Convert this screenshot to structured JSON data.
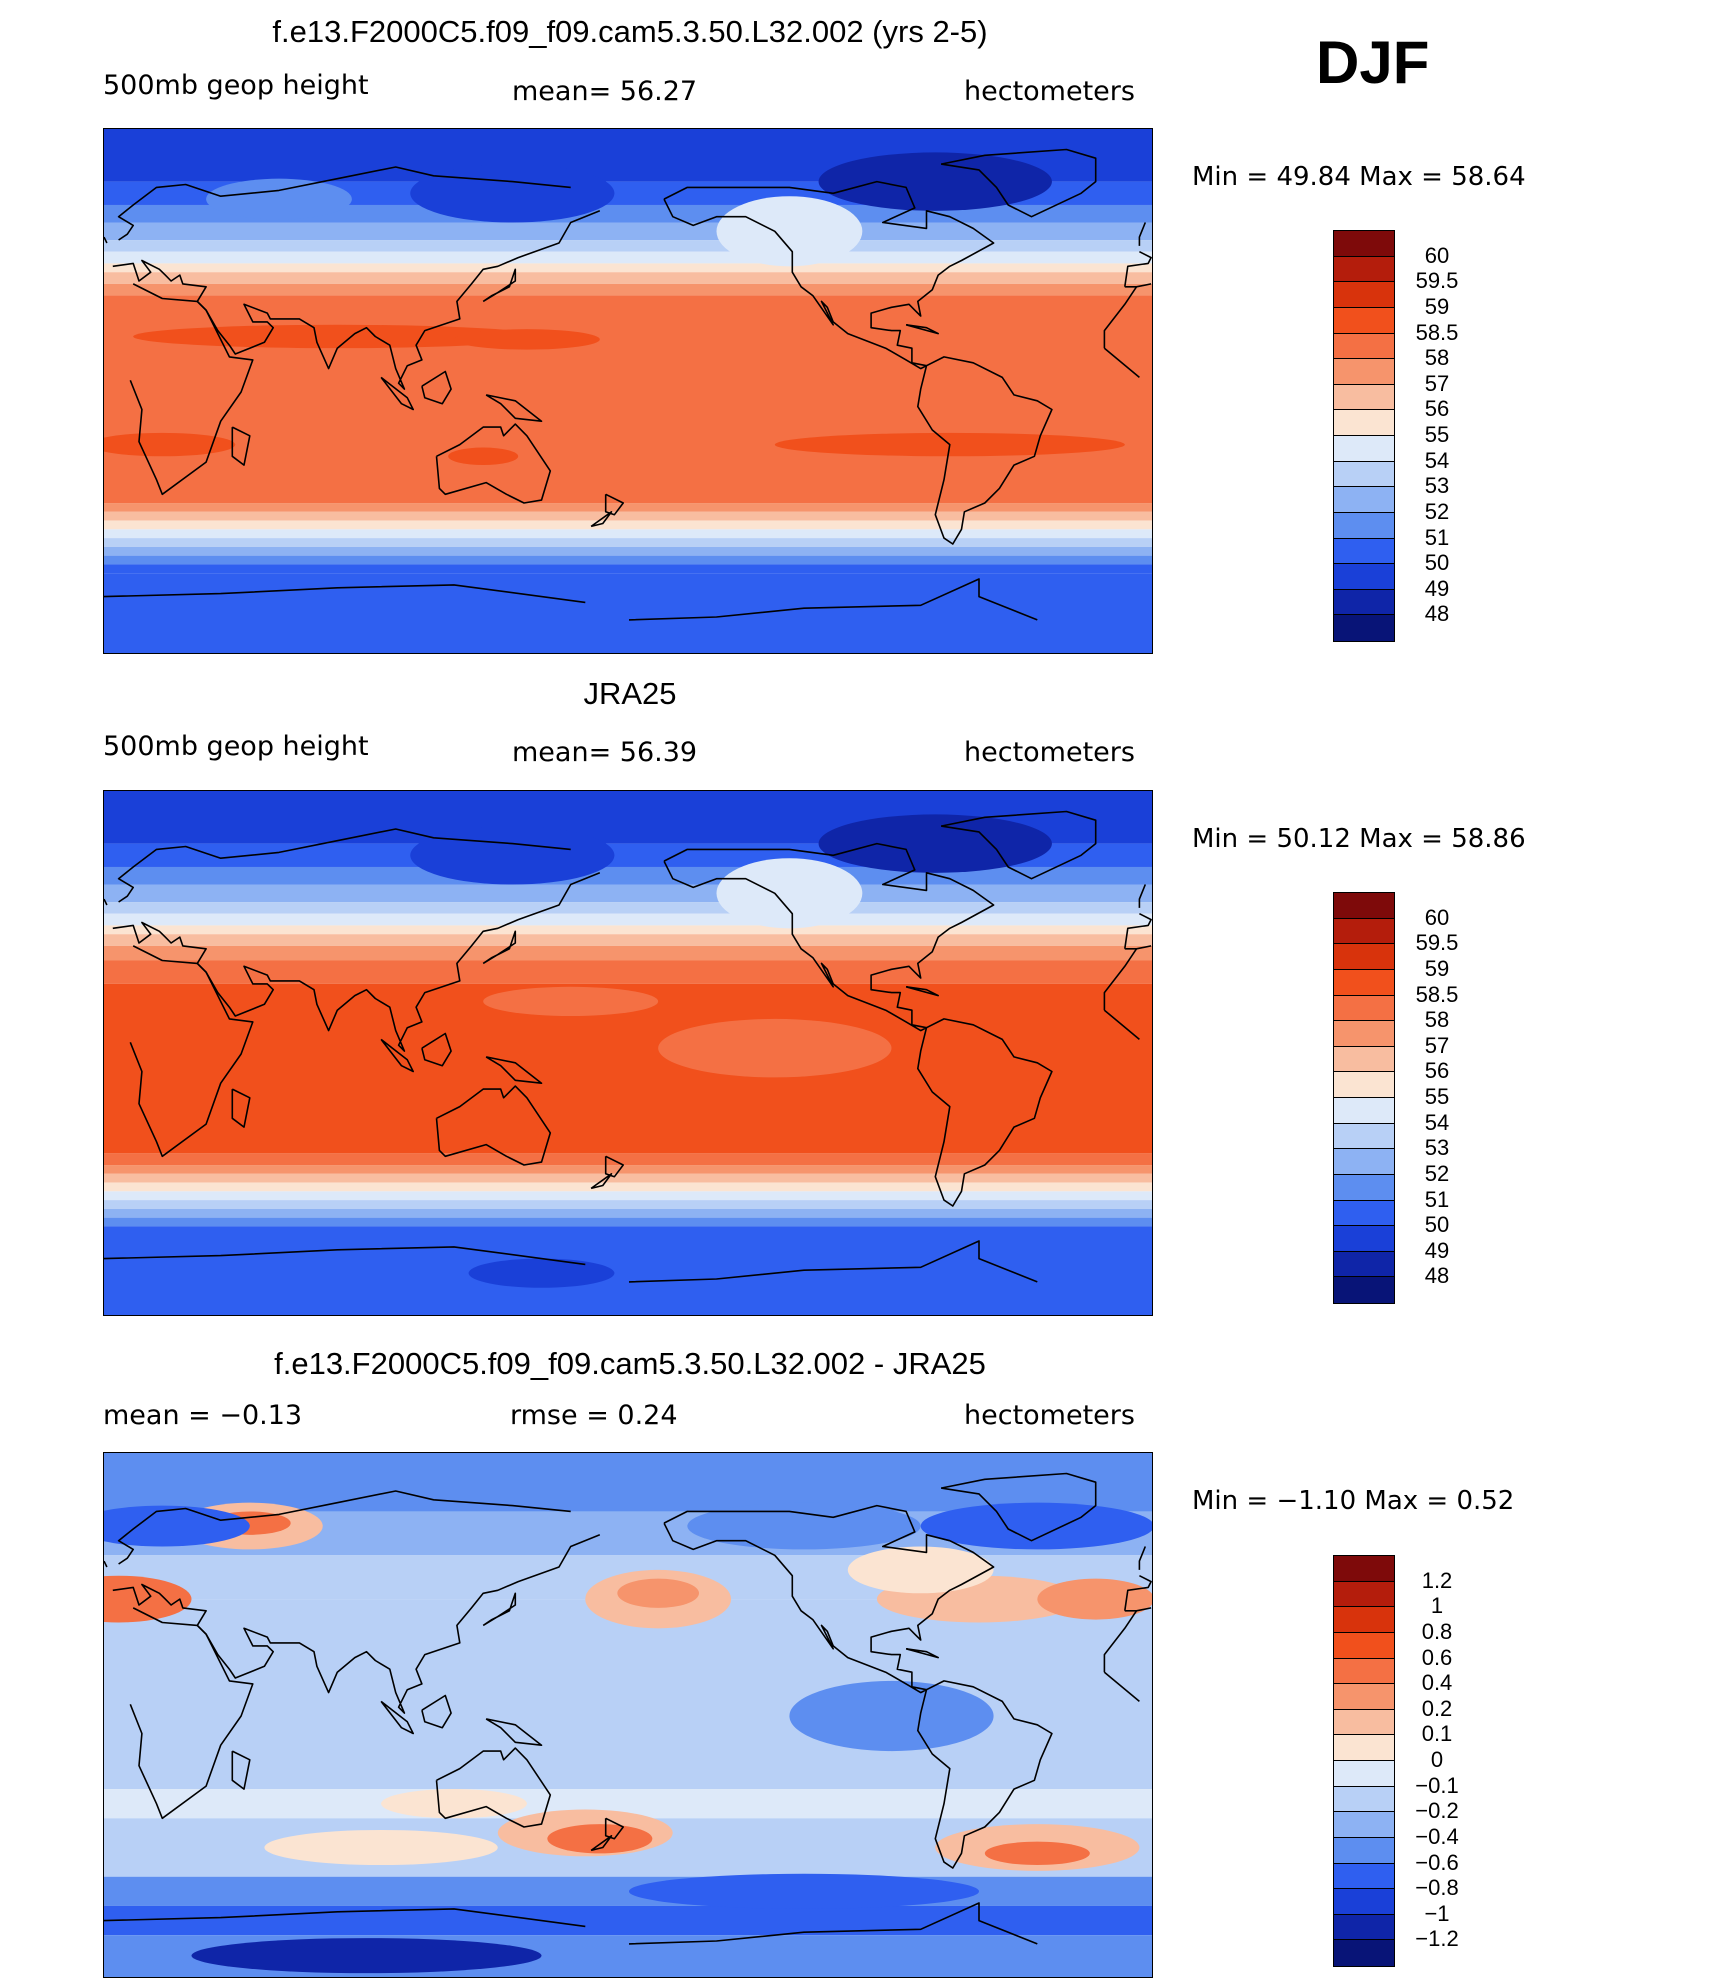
{
  "season": "DJF",
  "panels": [
    {
      "title": "f.e13.F2000C5.f09_f09.cam5.3.50.L32.002 (yrs 2-5)",
      "left_label": "500mb  geop  height",
      "center_label": "mean=   56.27",
      "right_label": "hectometers",
      "minmax": "Min  =    49.84  Max  =    58.64",
      "type": "abs"
    },
    {
      "title": "JRA25",
      "left_label": "500mb  geop  height",
      "center_label": "mean=   56.39",
      "right_label": "hectometers",
      "minmax": "Min  =    50.12  Max  =    58.86",
      "type": "abs"
    },
    {
      "title": "f.e13.F2000C5.f09_f09.cam5.3.50.L32.002 - JRA25",
      "left_label": "mean  =   −0.13",
      "center_label": "rmse  =     0.24",
      "right_label": "hectometers",
      "minmax": "Min  =    −1.10  Max  =      0.52",
      "type": "diff"
    }
  ],
  "colorbar_abs": {
    "levels": [
      "60",
      "59.5",
      "59",
      "58.5",
      "58",
      "57",
      "56",
      "55",
      "54",
      "53",
      "52",
      "51",
      "50",
      "49",
      "48"
    ],
    "colors": [
      "#7e0a0a",
      "#b41d0c",
      "#d8330c",
      "#f1501c",
      "#f47044",
      "#f6946c",
      "#f8bda0",
      "#fbe4d2",
      "#dde9f9",
      "#b8d0f6",
      "#8db2f3",
      "#5d8ef0",
      "#2f5ff0",
      "#1a40d8",
      "#0f25a8",
      "#081477"
    ]
  },
  "colorbar_diff": {
    "levels": [
      "1.2",
      "1",
      "0.8",
      "0.6",
      "0.4",
      "0.2",
      "0.1",
      "0",
      "−0.1",
      "−0.2",
      "−0.4",
      "−0.6",
      "−0.8",
      "−1",
      "−1.2"
    ],
    "colors": [
      "#7e0a0a",
      "#b41d0c",
      "#d8330c",
      "#f1501c",
      "#f47044",
      "#f6946c",
      "#f8bda0",
      "#fbe4d2",
      "#dde9f9",
      "#b8d0f6",
      "#8db2f3",
      "#5d8ef0",
      "#2f5ff0",
      "#1a40d8",
      "#0f25a8",
      "#081477"
    ]
  },
  "chart_data": [
    {
      "type": "heatmap",
      "title": "f.e13.F2000C5.f09_f09.cam5.3.50.L32.002 (yrs 2-5)",
      "variable": "500mb geop height",
      "units": "hectometers",
      "mean": 56.27,
      "min": 49.84,
      "max": 58.64,
      "contour_levels": [
        48,
        49,
        50,
        51,
        52,
        53,
        54,
        55,
        56,
        57,
        58,
        58.5,
        59,
        59.5,
        60
      ]
    },
    {
      "type": "heatmap",
      "title": "JRA25",
      "variable": "500mb geop height",
      "units": "hectometers",
      "mean": 56.39,
      "min": 50.12,
      "max": 58.86,
      "contour_levels": [
        48,
        49,
        50,
        51,
        52,
        53,
        54,
        55,
        56,
        57,
        58,
        58.5,
        59,
        59.5,
        60
      ]
    },
    {
      "type": "heatmap",
      "title": "f.e13.F2000C5.f09_f09.cam5.3.50.L32.002 - JRA25",
      "units": "hectometers",
      "mean": -0.13,
      "rmse": 0.24,
      "min": -1.1,
      "max": 0.52,
      "contour_levels": [
        -1.2,
        -1,
        -0.8,
        -0.6,
        -0.4,
        -0.2,
        -0.1,
        0,
        0.1,
        0.2,
        0.4,
        0.6,
        0.8,
        1,
        1.2
      ]
    }
  ]
}
